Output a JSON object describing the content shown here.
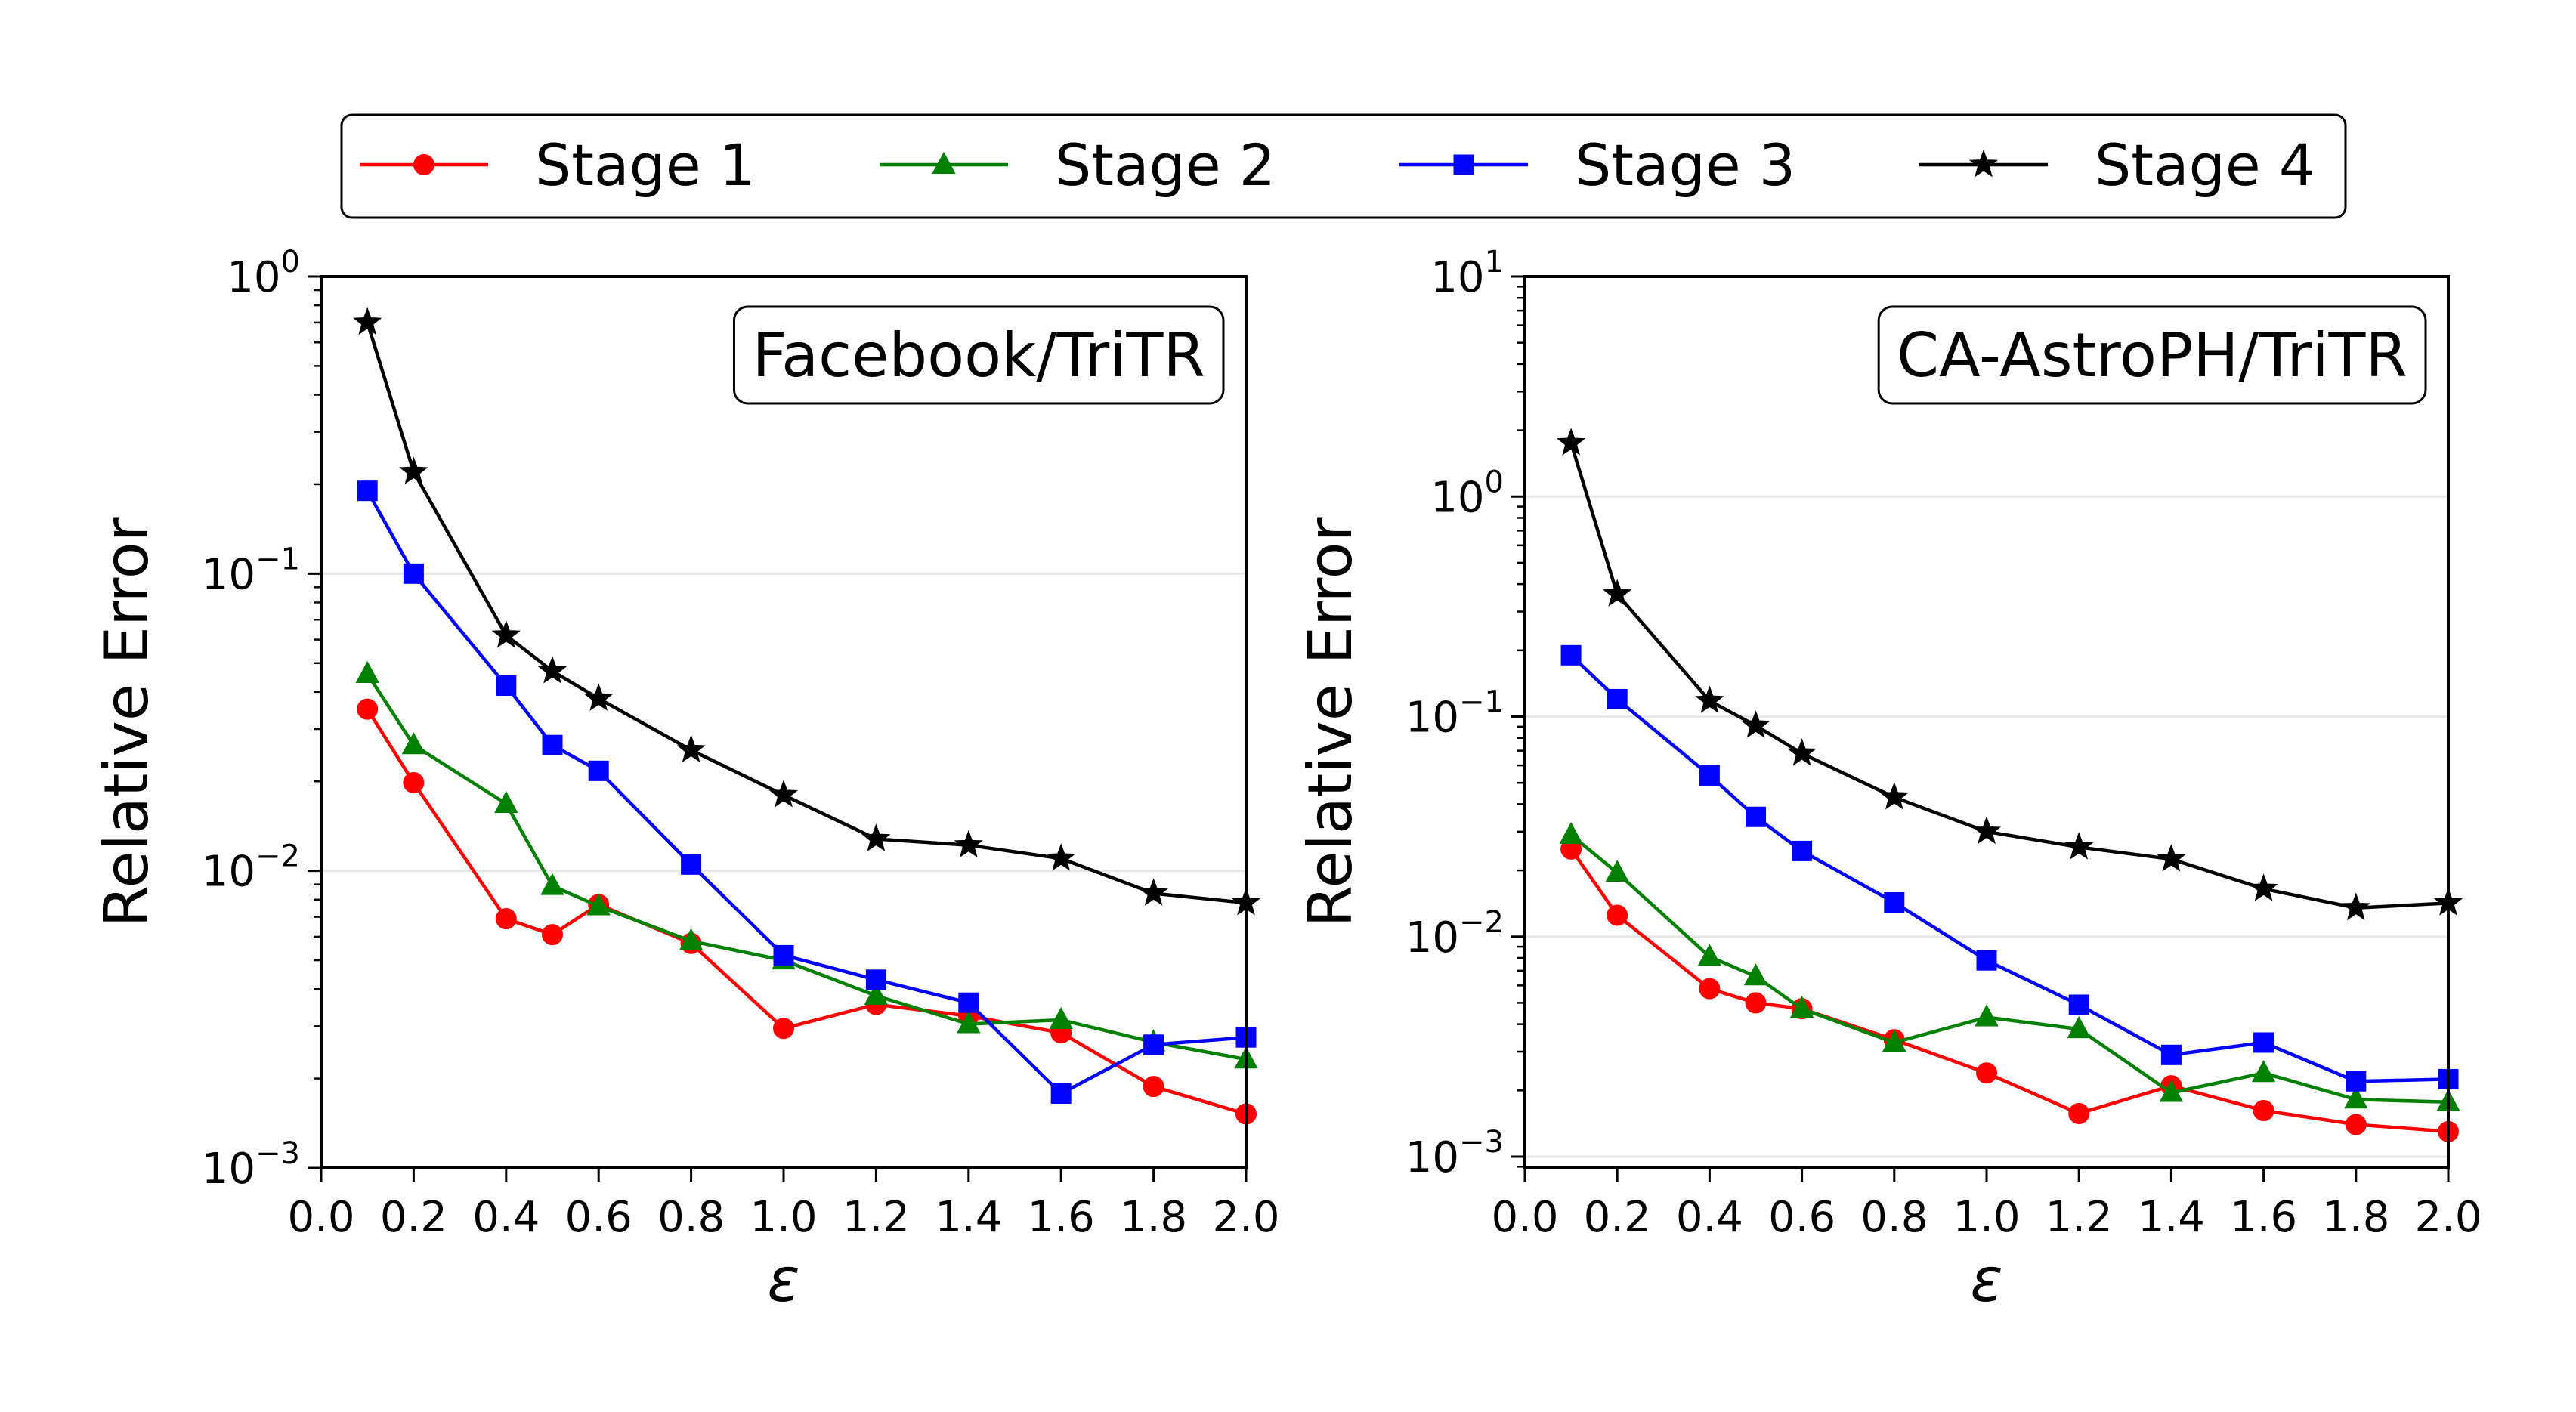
{
  "chart_data": [
    {
      "type": "line",
      "title": "Facebook/TriTR",
      "xlabel": "ε",
      "ylabel": "Relative Error",
      "yscale": "log",
      "xlim": [
        0.0,
        2.0
      ],
      "ylim": [
        0.001,
        1
      ],
      "xticks": [
        "0.0",
        "0.2",
        "0.4",
        "0.6",
        "0.8",
        "1.0",
        "1.2",
        "1.4",
        "1.6",
        "1.8",
        "2.0"
      ],
      "yticks": [
        {
          "base": "10",
          "exp": "0"
        },
        {
          "base": "10",
          "exp": "−1"
        },
        {
          "base": "10",
          "exp": "−2"
        },
        {
          "base": "10",
          "exp": "−3"
        }
      ],
      "grid": "horizontal",
      "x": [
        0.1,
        0.2,
        0.4,
        0.5,
        0.6,
        0.8,
        1.0,
        1.2,
        1.4,
        1.6,
        1.8,
        2.0
      ],
      "series": [
        {
          "name": "Stage 1",
          "values": [
            0.035,
            0.0198,
            0.0069,
            0.0061,
            0.0077,
            0.0057,
            0.00295,
            0.00355,
            0.00325,
            0.00285,
            0.00188,
            0.00152
          ]
        },
        {
          "name": "Stage 2",
          "values": [
            0.046,
            0.0265,
            0.0168,
            0.0089,
            0.0076,
            0.0058,
            0.005,
            0.0038,
            0.00305,
            0.00315,
            0.00265,
            0.00232
          ]
        },
        {
          "name": "Stage 3",
          "values": [
            0.19,
            0.1,
            0.042,
            0.0265,
            0.0217,
            0.0105,
            0.0052,
            0.0043,
            0.0036,
            0.00178,
            0.0026,
            0.00275
          ]
        },
        {
          "name": "Stage 4",
          "values": [
            0.7,
            0.22,
            0.062,
            0.047,
            0.038,
            0.0255,
            0.018,
            0.0128,
            0.0122,
            0.011,
            0.0084,
            0.0078
          ]
        }
      ]
    },
    {
      "type": "line",
      "title": "CA-AstroPH/TriTR",
      "xlabel": "ε",
      "ylabel": "Relative Error",
      "yscale": "log",
      "xlim": [
        0.0,
        2.0
      ],
      "ylim": [
        0.0009,
        10
      ],
      "xticks": [
        "0.0",
        "0.2",
        "0.4",
        "0.6",
        "0.8",
        "1.0",
        "1.2",
        "1.4",
        "1.6",
        "1.8",
        "2.0"
      ],
      "yticks": [
        {
          "base": "10",
          "exp": "1"
        },
        {
          "base": "10",
          "exp": "0"
        },
        {
          "base": "10",
          "exp": "−1"
        },
        {
          "base": "10",
          "exp": "−2"
        },
        {
          "base": "10",
          "exp": "−3"
        }
      ],
      "grid": "horizontal",
      "x": [
        0.1,
        0.2,
        0.4,
        0.5,
        0.6,
        0.8,
        1.0,
        1.2,
        1.4,
        1.6,
        1.8,
        2.0
      ],
      "series": [
        {
          "name": "Stage 1",
          "values": [
            0.025,
            0.0125,
            0.0058,
            0.005,
            0.0047,
            0.0034,
            0.0024,
            0.00157,
            0.0021,
            0.00162,
            0.0014,
            0.0013
          ]
        },
        {
          "name": "Stage 2",
          "values": [
            0.029,
            0.0195,
            0.0081,
            0.0066,
            0.0047,
            0.0033,
            0.0043,
            0.0038,
            0.00195,
            0.0024,
            0.00182,
            0.00177
          ]
        },
        {
          "name": "Stage 3",
          "values": [
            0.19,
            0.12,
            0.054,
            0.035,
            0.0245,
            0.0143,
            0.0078,
            0.0049,
            0.0029,
            0.0033,
            0.0022,
            0.00225
          ]
        },
        {
          "name": "Stage 4",
          "values": [
            1.75,
            0.36,
            0.118,
            0.091,
            0.068,
            0.043,
            0.03,
            0.0255,
            0.0225,
            0.0165,
            0.0135,
            0.0142
          ]
        }
      ]
    }
  ],
  "legend": {
    "placement": "top",
    "entries": [
      {
        "label": "Stage 1",
        "color": "#ff0000",
        "marker": "circle"
      },
      {
        "label": "Stage 2",
        "color": "#008000",
        "marker": "triangle"
      },
      {
        "label": "Stage 3",
        "color": "#0000ff",
        "marker": "square"
      },
      {
        "label": "Stage 4",
        "color": "#000000",
        "marker": "star"
      }
    ]
  }
}
